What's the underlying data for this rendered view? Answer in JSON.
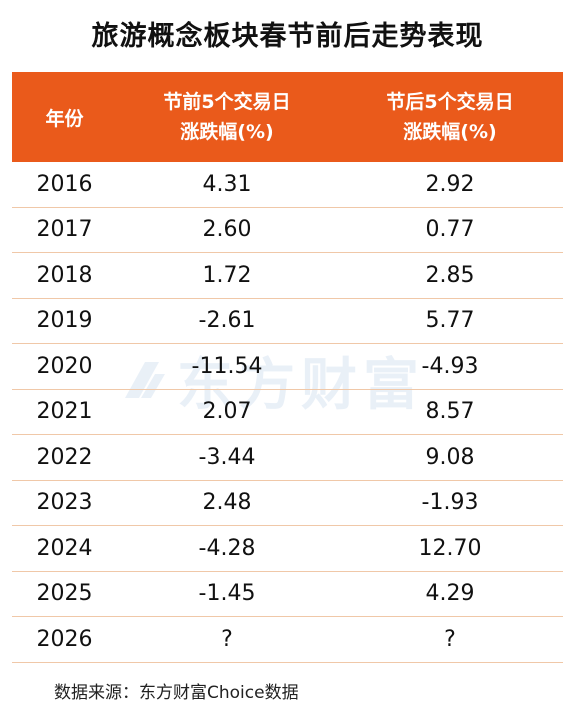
{
  "title": "旅游概念板块春节前后走势表现",
  "table": {
    "headers": {
      "year": "年份",
      "pre_line1": "节前5个交易日",
      "pre_line2": "涨跌幅(%)",
      "post_line1": "节后5个交易日",
      "post_line2": "涨跌幅(%)"
    },
    "rows": [
      {
        "year": "2016",
        "pre": "4.31",
        "post": "2.92"
      },
      {
        "year": "2017",
        "pre": "2.60",
        "post": "0.77"
      },
      {
        "year": "2018",
        "pre": "1.72",
        "post": "2.85"
      },
      {
        "year": "2019",
        "pre": "-2.61",
        "post": "5.77"
      },
      {
        "year": "2020",
        "pre": "-11.54",
        "post": "-4.93"
      },
      {
        "year": "2021",
        "pre": "2.07",
        "post": "8.57"
      },
      {
        "year": "2022",
        "pre": "-3.44",
        "post": "9.08"
      },
      {
        "year": "2023",
        "pre": "2.48",
        "post": "-1.93"
      },
      {
        "year": "2024",
        "pre": "-4.28",
        "post": "12.70"
      },
      {
        "year": "2025",
        "pre": "-1.45",
        "post": "4.29"
      },
      {
        "year": "2026",
        "pre": "?",
        "post": "?"
      }
    ]
  },
  "watermark": {
    "text": "东方财富",
    "icon": "east-money-logo-icon"
  },
  "source": "数据来源：东方财富Choice数据",
  "colors": {
    "header_bg": "#ea5a1b",
    "header_text": "#ffffff",
    "row_divider": "#f0c8a8",
    "watermark": "#1a5fb4"
  }
}
